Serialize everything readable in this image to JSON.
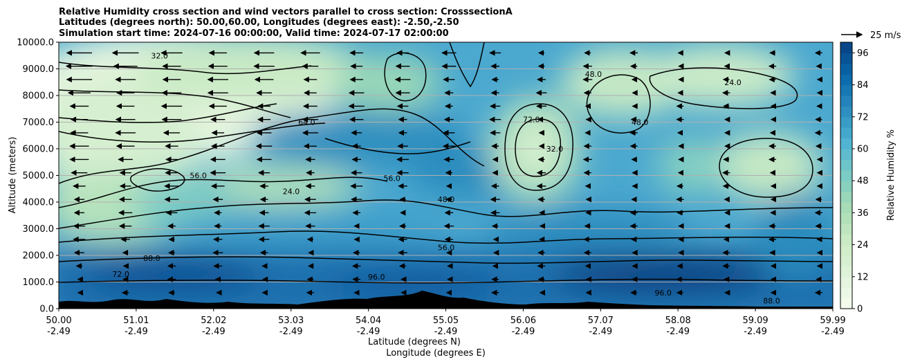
{
  "chart_data": {
    "type": "heatmap",
    "title_lines": [
      "Relative Humidity cross section and wind vectors parallel to cross section: CrosssectionA",
      "Latitudes (degrees north): 50.00,60.00, Longitudes (degrees east): -2.50,-2.50",
      "Simulation start time: 2024-07-16 00:00:00, Valid time: 2024-07-17 02:00:00"
    ],
    "ylabel": "Altitude (meters)",
    "xlabel_lat": "Latitude (degrees N)",
    "xlabel_lon": "Longitude (degrees E)",
    "ylim": [
      0,
      10000
    ],
    "yticks": [
      "0.0",
      "1000.0",
      "2000.0",
      "3000.0",
      "4000.0",
      "5000.0",
      "6000.0",
      "7000.0",
      "8000.0",
      "9000.0",
      "10000.0"
    ],
    "xticks_lat": [
      "50.00",
      "51.01",
      "52.02",
      "53.03",
      "54.04",
      "55.05",
      "56.06",
      "57.07",
      "58.08",
      "59.09",
      "59.99"
    ],
    "xticks_lon": [
      "-2.49",
      "-2.49",
      "-2.49",
      "-2.49",
      "-2.49",
      "-2.49",
      "-2.49",
      "-2.49",
      "-2.49",
      "-2.49",
      "-2.49"
    ],
    "colorbar": {
      "label": "Relative Humidity %",
      "ticks": [
        "0",
        "12",
        "24",
        "36",
        "48",
        "60",
        "72",
        "84",
        "96"
      ],
      "range": [
        0,
        100
      ],
      "colormap": [
        "#f7fcf0",
        "#e0f3db",
        "#ccebc5",
        "#a8ddb5",
        "#7bccc4",
        "#4eb3d3",
        "#2b8cbe",
        "#0868ac",
        "#084081"
      ]
    },
    "quiver_key_label": "25 m/s",
    "grid": "horizontal",
    "contour_labels": [
      {
        "text": "24.0",
        "lat": 53.0,
        "alt": 4400
      },
      {
        "text": "56.0",
        "lat": 54.3,
        "alt": 4900
      },
      {
        "text": "48.0",
        "lat": 55.0,
        "alt": 4100
      },
      {
        "text": "56.0",
        "lat": 55.0,
        "alt": 2300
      },
      {
        "text": "96.0",
        "lat": 54.1,
        "alt": 1200
      },
      {
        "text": "72.0",
        "lat": 56.1,
        "alt": 7100
      },
      {
        "text": "32.0",
        "lat": 56.4,
        "alt": 6000
      },
      {
        "text": "48.0",
        "lat": 56.9,
        "alt": 8800
      },
      {
        "text": "48.0",
        "lat": 57.5,
        "alt": 7000
      },
      {
        "text": "24.0",
        "lat": 58.7,
        "alt": 8500
      },
      {
        "text": "96.0",
        "lat": 57.8,
        "alt": 600
      },
      {
        "text": "88.0",
        "lat": 59.2,
        "alt": 300
      },
      {
        "text": "32.0",
        "lat": 51.3,
        "alt": 9500
      },
      {
        "text": "64.0",
        "lat": 53.2,
        "alt": 7000
      },
      {
        "text": "56.0",
        "lat": 51.8,
        "alt": 5000
      },
      {
        "text": "72.0",
        "lat": 50.8,
        "alt": 1300
      },
      {
        "text": "88.0",
        "lat": 51.2,
        "alt": 1900
      }
    ]
  }
}
